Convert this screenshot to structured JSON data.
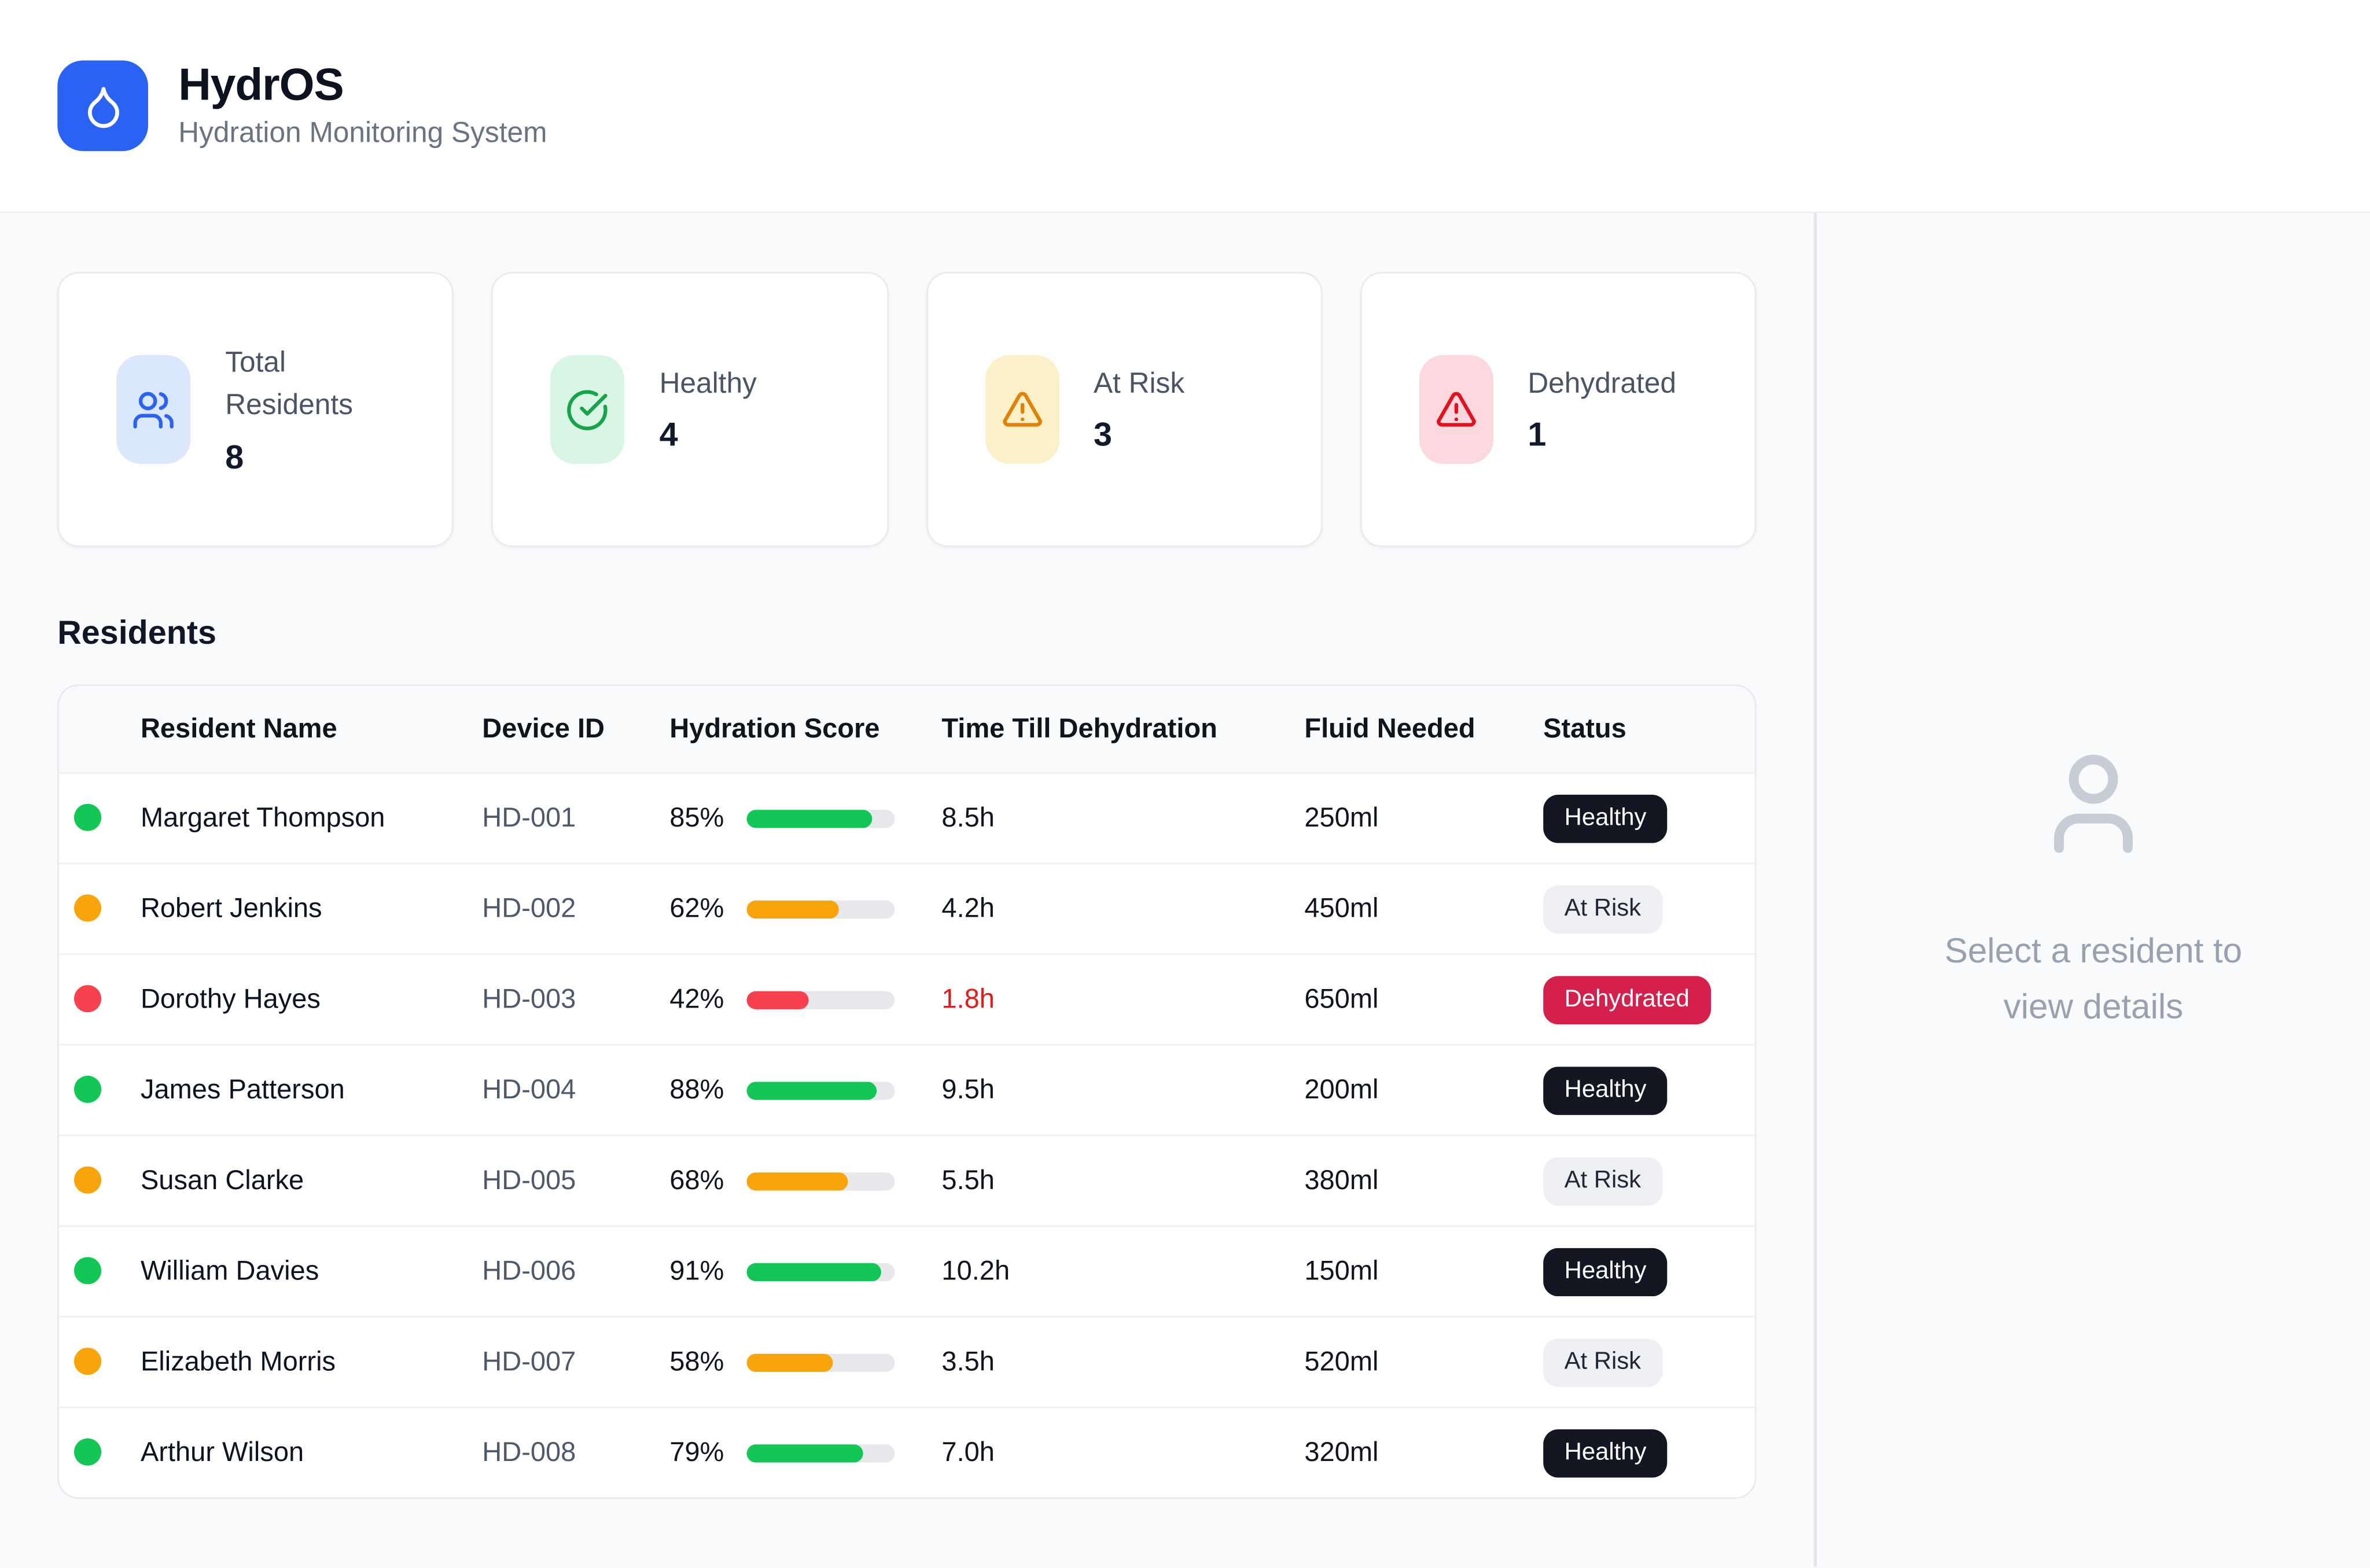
{
  "app": {
    "title": "HydrOS",
    "subtitle": "Hydration Monitoring System",
    "logo_icon": "droplet-icon"
  },
  "summary_cards": [
    {
      "label": "Total Residents",
      "value": "8",
      "icon": "users-icon",
      "icon_color": "#2a63f4",
      "icon_bg": "#dbe7fd"
    },
    {
      "label": "Healthy",
      "value": "4",
      "icon": "check-circle-icon",
      "icon_color": "#16a34a",
      "icon_bg": "#d8f6e3"
    },
    {
      "label": "At Risk",
      "value": "3",
      "icon": "alert-triangle-icon",
      "icon_color": "#e0820a",
      "icon_bg": "#fcf0c8"
    },
    {
      "label": "Dehydrated",
      "value": "1",
      "icon": "alert-triangle-icon",
      "icon_color": "#e3111f",
      "icon_bg": "#fbd8dd"
    }
  ],
  "residents_section": {
    "heading": "Residents",
    "table": {
      "columns": [
        "Resident Name",
        "Device ID",
        "Hydration Score",
        "Time Till Dehydration",
        "Fluid Needed",
        "Status"
      ],
      "rows": [
        {
          "name": "Margaret Thompson",
          "device_id": "HD-001",
          "hydration_score": "85%",
          "score_percent": 85,
          "time_till_dehydration": "8.5h",
          "time_critical": false,
          "fluid_needed": "250ml",
          "status": "Healthy"
        },
        {
          "name": "Robert Jenkins",
          "device_id": "HD-002",
          "hydration_score": "62%",
          "score_percent": 62,
          "time_till_dehydration": "4.2h",
          "time_critical": false,
          "fluid_needed": "450ml",
          "status": "At Risk"
        },
        {
          "name": "Dorothy Hayes",
          "device_id": "HD-003",
          "hydration_score": "42%",
          "score_percent": 42,
          "time_till_dehydration": "1.8h",
          "time_critical": true,
          "fluid_needed": "650ml",
          "status": "Dehydrated"
        },
        {
          "name": "James Patterson",
          "device_id": "HD-004",
          "hydration_score": "88%",
          "score_percent": 88,
          "time_till_dehydration": "9.5h",
          "time_critical": false,
          "fluid_needed": "200ml",
          "status": "Healthy"
        },
        {
          "name": "Susan Clarke",
          "device_id": "HD-005",
          "hydration_score": "68%",
          "score_percent": 68,
          "time_till_dehydration": "5.5h",
          "time_critical": false,
          "fluid_needed": "380ml",
          "status": "At Risk"
        },
        {
          "name": "William Davies",
          "device_id": "HD-006",
          "hydration_score": "91%",
          "score_percent": 91,
          "time_till_dehydration": "10.2h",
          "time_critical": false,
          "fluid_needed": "150ml",
          "status": "Healthy"
        },
        {
          "name": "Elizabeth Morris",
          "device_id": "HD-007",
          "hydration_score": "58%",
          "score_percent": 58,
          "time_till_dehydration": "3.5h",
          "time_critical": false,
          "fluid_needed": "520ml",
          "status": "At Risk"
        },
        {
          "name": "Arthur Wilson",
          "device_id": "HD-008",
          "hydration_score": "79%",
          "score_percent": 79,
          "time_till_dehydration": "7.0h",
          "time_critical": false,
          "fluid_needed": "320ml",
          "status": "Healthy"
        }
      ]
    }
  },
  "detail_panel": {
    "empty_state_text": "Select a resident to view details",
    "icon": "user-icon"
  },
  "colors": {
    "brand_blue": "#2a63f4",
    "healthy_green": "#12c755",
    "at_risk_orange": "#f9a40a",
    "dehydrated_red": "#f8414e",
    "healthy_badge_bg": "#141623",
    "at_risk_badge_bg": "#edeff3",
    "dehydrated_badge_bg": "#d51f4c",
    "critical_time_red": "#e31b1b"
  }
}
